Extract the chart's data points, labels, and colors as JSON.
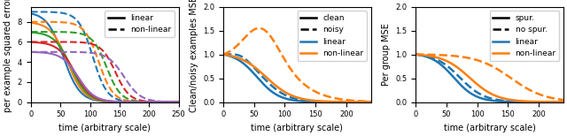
{
  "panel1": {
    "ylabel": "per example squared error",
    "xlabel": "time (arbitrary scale)",
    "xlim": [
      0,
      250
    ],
    "ylim": [
      0,
      9.5
    ],
    "colors": [
      "#1f77b4",
      "#ff7f0e",
      "#2ca02c",
      "#d62728",
      "#9467bd"
    ],
    "linear_starts": [
      9.0,
      8.0,
      7.0,
      6.0,
      5.0
    ],
    "linear_centers": [
      55,
      62,
      68,
      74,
      80
    ],
    "linear_widths": [
      14,
      14,
      14,
      14,
      14
    ],
    "nonlinear_centers": [
      105,
      115,
      128,
      143,
      158
    ],
    "nonlinear_widths": [
      12,
      12,
      12,
      12,
      14
    ]
  },
  "panel2": {
    "ylabel": "Clean/noisy examples MSE",
    "xlabel": "time (arbitrary scale)",
    "xlim": [
      0,
      240
    ],
    "ylim": [
      0.0,
      2.0
    ]
  },
  "panel3": {
    "ylabel": "Per group MSE",
    "xlabel": "time (arbitrary scale)",
    "xlim": [
      0,
      240
    ],
    "ylim": [
      0.0,
      2.0
    ]
  },
  "blue": "#1f77b4",
  "orange": "#ff7f0e",
  "figsize": [
    6.4,
    1.54
  ],
  "dpi": 100
}
